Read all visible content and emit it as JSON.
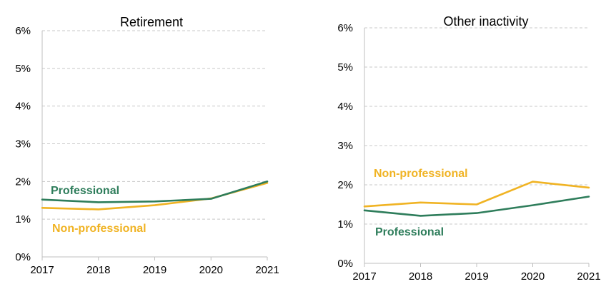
{
  "chart_data": [
    {
      "type": "line",
      "title": "Retirement",
      "xlabel": "",
      "ylabel": "",
      "x": [
        "2017",
        "2018",
        "2019",
        "2020",
        "2021"
      ],
      "ylim": [
        0,
        6
      ],
      "y_ticks": [
        "0%",
        "1%",
        "2%",
        "3%",
        "4%",
        "5%",
        "6%"
      ],
      "grid": true,
      "series": [
        {
          "name": "Professional",
          "color": "#2e7d5b",
          "values": [
            1.52,
            1.45,
            1.47,
            1.54,
            2.0
          ]
        },
        {
          "name": "Non-professional",
          "color": "#f0b323",
          "values": [
            1.3,
            1.26,
            1.37,
            1.55,
            1.96
          ]
        }
      ],
      "annotations": [
        {
          "text": "Professional",
          "series": "Professional"
        },
        {
          "text": "Non-professional",
          "series": "Non-professional"
        }
      ]
    },
    {
      "type": "line",
      "title": "Other inactivity",
      "xlabel": "",
      "ylabel": "",
      "x": [
        "2017",
        "2018",
        "2019",
        "2020",
        "2021"
      ],
      "ylim": [
        0,
        6
      ],
      "y_ticks": [
        "0%",
        "1%",
        "2%",
        "3%",
        "4%",
        "5%",
        "6%"
      ],
      "grid": true,
      "series": [
        {
          "name": "Professional",
          "color": "#2e7d5b",
          "values": [
            1.35,
            1.21,
            1.28,
            1.48,
            1.7
          ]
        },
        {
          "name": "Non-professional",
          "color": "#f0b323",
          "values": [
            1.45,
            1.55,
            1.5,
            2.08,
            1.93
          ]
        }
      ],
      "annotations": [
        {
          "text": "Non-professional",
          "series": "Non-professional"
        },
        {
          "text": "Professional",
          "series": "Professional"
        }
      ]
    }
  ]
}
